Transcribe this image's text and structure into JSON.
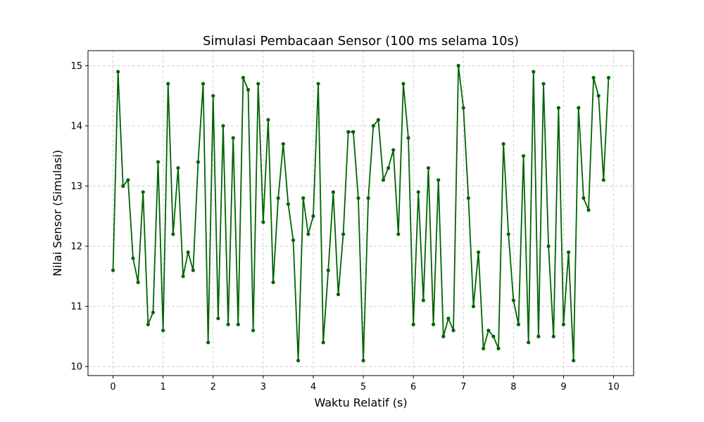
{
  "chart_data": {
    "type": "line",
    "title": "Simulasi Pembacaan Sensor (100 ms selama 10s)",
    "xlabel": "Waktu Relatif (s)",
    "ylabel": "Nilai Sensor (Simulasi)",
    "xlim": [
      -0.5,
      10.4
    ],
    "ylim": [
      9.85,
      15.25
    ],
    "x_ticks": [
      0,
      1,
      2,
      3,
      4,
      5,
      6,
      7,
      8,
      9,
      10
    ],
    "y_ticks": [
      10,
      11,
      12,
      13,
      14,
      15
    ],
    "grid": true,
    "grid_style": "dashed",
    "series": [
      {
        "color": "#006400",
        "marker": "circle",
        "x": [
          0.0,
          0.1,
          0.2,
          0.3,
          0.4,
          0.5,
          0.6,
          0.7,
          0.8,
          0.9,
          1.0,
          1.1,
          1.2,
          1.3,
          1.4,
          1.5,
          1.6,
          1.7,
          1.8,
          1.9,
          2.0,
          2.1,
          2.2,
          2.3,
          2.4,
          2.5,
          2.6,
          2.7,
          2.8,
          2.9,
          3.0,
          3.1,
          3.2,
          3.3,
          3.4,
          3.5,
          3.6,
          3.7,
          3.8,
          3.9,
          4.0,
          4.1,
          4.2,
          4.3,
          4.4,
          4.5,
          4.6,
          4.7,
          4.8,
          4.9,
          5.0,
          5.1,
          5.2,
          5.3,
          5.4,
          5.5,
          5.6,
          5.7,
          5.8,
          5.9,
          6.0,
          6.1,
          6.2,
          6.3,
          6.4,
          6.5,
          6.6,
          6.7,
          6.8,
          6.9,
          7.0,
          7.1,
          7.2,
          7.3,
          7.4,
          7.5,
          7.6,
          7.7,
          7.8,
          7.9,
          8.0,
          8.1,
          8.2,
          8.3,
          8.4,
          8.5,
          8.6,
          8.7,
          8.8,
          8.9,
          9.0,
          9.1,
          9.2,
          9.3,
          9.4,
          9.5,
          9.6,
          9.7,
          9.8,
          9.9
        ],
        "y": [
          11.6,
          14.9,
          13.0,
          13.1,
          11.8,
          11.4,
          12.9,
          10.7,
          10.9,
          13.4,
          10.6,
          14.7,
          12.2,
          13.3,
          11.5,
          11.9,
          11.6,
          13.4,
          14.7,
          10.4,
          14.5,
          10.8,
          14.0,
          10.7,
          13.8,
          10.7,
          14.8,
          14.6,
          10.6,
          14.7,
          12.4,
          14.1,
          11.4,
          12.8,
          13.7,
          12.7,
          12.1,
          10.1,
          12.8,
          12.2,
          12.5,
          14.7,
          10.4,
          11.6,
          12.9,
          11.2,
          12.2,
          13.9,
          13.9,
          12.8,
          10.1,
          12.8,
          14.0,
          14.1,
          13.1,
          13.3,
          13.6,
          12.2,
          14.7,
          13.8,
          10.7,
          12.9,
          11.1,
          13.3,
          10.7,
          13.1,
          10.5,
          10.8,
          10.6,
          15.0,
          14.3,
          12.8,
          11.0,
          11.9,
          10.3,
          10.6,
          10.5,
          10.3,
          13.7,
          12.2,
          11.1,
          10.7,
          13.5,
          10.4,
          14.9,
          10.5,
          14.7,
          12.0,
          10.5,
          14.3,
          10.7,
          11.9,
          10.1,
          14.3,
          12.8,
          12.6,
          14.8,
          14.5,
          13.1,
          14.8
        ]
      }
    ]
  }
}
